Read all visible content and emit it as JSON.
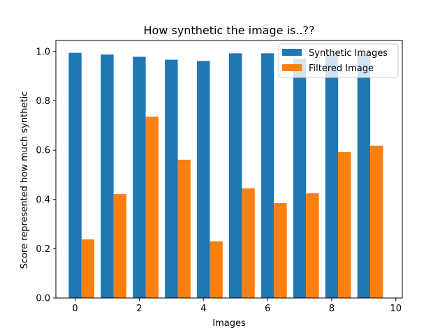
{
  "chart_data": {
    "type": "bar",
    "title": "How synthetic the image is..??",
    "xlabel": "Images",
    "ylabel": "Score represented how much synthetic",
    "x": [
      0,
      1,
      2,
      3,
      4,
      5,
      6,
      7,
      8,
      9
    ],
    "xlim": [
      -0.6,
      10.2
    ],
    "ylim": [
      0,
      1.045
    ],
    "xticks": [
      0,
      2,
      4,
      6,
      8,
      10
    ],
    "yticks": [
      0.0,
      0.2,
      0.4,
      0.6,
      0.8,
      1.0
    ],
    "xtick_labels": [
      "0",
      "2",
      "4",
      "6",
      "8",
      "10"
    ],
    "ytick_labels": [
      "0.0",
      "0.2",
      "0.4",
      "0.6",
      "0.8",
      "1.0"
    ],
    "bar_width": 0.4,
    "legend_position": "top-right",
    "series": [
      {
        "name": "Synthetic Images",
        "color": "#1f77b4",
        "offset": 0,
        "values": [
          0.995,
          0.988,
          0.979,
          0.967,
          0.962,
          0.993,
          0.993,
          0.97,
          0.985,
          0.99
        ]
      },
      {
        "name": "Filtered Image",
        "color": "#ff7f0e",
        "offset": 0.4,
        "values": [
          0.238,
          0.422,
          0.736,
          0.561,
          0.23,
          0.445,
          0.385,
          0.425,
          0.592,
          0.618
        ]
      }
    ]
  }
}
